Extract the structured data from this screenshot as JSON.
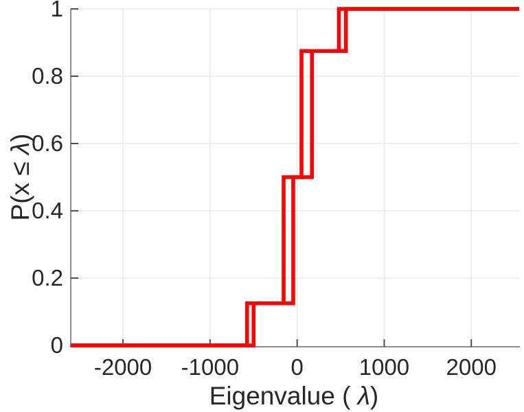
{
  "colors": {
    "background": "#ffffff",
    "line": "#fc0404",
    "axis_line": "#8a8a8a",
    "tick_mark": "#4d4d4d",
    "text": "#262626",
    "grid": "#e8e8e8"
  },
  "chart_data": {
    "type": "line",
    "subtype": "empirical-cdf-step",
    "title": "",
    "xlabel_parts": [
      {
        "text": "Eigenvalue (  ",
        "italic": false
      },
      {
        "text": "λ",
        "italic": true
      },
      {
        "text": ")",
        "italic": false
      }
    ],
    "ylabel_parts": [
      {
        "text": "P(x ≤ ",
        "italic": false
      },
      {
        "text": "λ",
        "italic": true
      },
      {
        "text": ")",
        "italic": false
      }
    ],
    "xlim": [
      -2600,
      2550
    ],
    "ylim": [
      0,
      1
    ],
    "x_ticks": [
      {
        "value": -2000,
        "label": "-2000"
      },
      {
        "value": -1000,
        "label": "-1000"
      },
      {
        "value": 0,
        "label": "0"
      },
      {
        "value": 1000,
        "label": "1000"
      },
      {
        "value": 2000,
        "label": "2000"
      }
    ],
    "y_ticks": [
      {
        "value": 0,
        "label": "0"
      },
      {
        "value": 0.2,
        "label": "0.2"
      },
      {
        "value": 0.4,
        "label": "0.4"
      },
      {
        "value": 0.6,
        "label": "0.6"
      },
      {
        "value": 0.8,
        "label": "0.8"
      },
      {
        "value": 1,
        "label": "1"
      }
    ],
    "grid": true,
    "legend": null,
    "line_width": 5.6,
    "levels": [
      0,
      0.125,
      0.5,
      0.875,
      1
    ],
    "jump_probabilities": [
      0.125,
      0.375,
      0.375,
      0.125
    ],
    "series": [
      {
        "name": "ecdf-step-leading",
        "start_level": 0,
        "jumps": [
          {
            "x": -575,
            "to_y": 0.125
          },
          {
            "x": -155,
            "to_y": 0.5
          },
          {
            "x": 50,
            "to_y": 0.875
          },
          {
            "x": 480,
            "to_y": 1
          }
        ]
      },
      {
        "name": "ecdf-step-trailing",
        "start_level": 0,
        "jumps": [
          {
            "x": -500,
            "to_y": 0.125
          },
          {
            "x": -45,
            "to_y": 0.5
          },
          {
            "x": 170,
            "to_y": 0.875
          },
          {
            "x": 560,
            "to_y": 1
          }
        ]
      }
    ]
  }
}
